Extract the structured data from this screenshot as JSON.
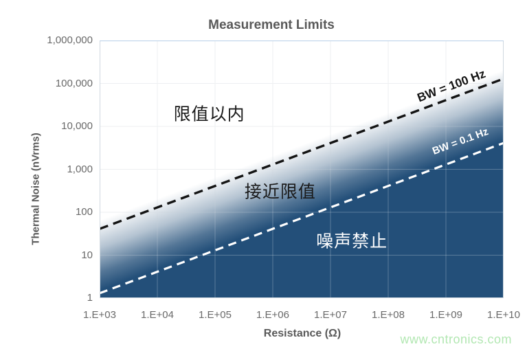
{
  "watermark": {
    "text": "www.cntronics.com",
    "color": "#b2e7b2"
  },
  "chart_data": {
    "type": "line",
    "title": "Measurement Limits",
    "xlabel": "Resistance (Ω)",
    "ylabel": "Thermal Noise (nVrms)",
    "x_scale": "log",
    "y_scale": "log",
    "axes": {
      "x_log_min": 3,
      "x_log_max": 10,
      "y_log_min": 0,
      "y_log_max": 6
    },
    "x_ticks": [
      {
        "log": 3,
        "label": "1.E+03"
      },
      {
        "log": 4,
        "label": "1.E+04"
      },
      {
        "log": 5,
        "label": "1.E+05"
      },
      {
        "log": 6,
        "label": "1.E+06"
      },
      {
        "log": 7,
        "label": "1.E+07"
      },
      {
        "log": 8,
        "label": "1.E+08"
      },
      {
        "log": 9,
        "label": "1.E+09"
      },
      {
        "log": 10,
        "label": "1.E+10"
      }
    ],
    "y_ticks": [
      {
        "log": 6,
        "label": "1,000,000"
      },
      {
        "log": 5,
        "label": "100,000"
      },
      {
        "log": 4,
        "label": "10,000"
      },
      {
        "log": 3,
        "label": "1,000"
      },
      {
        "log": 2,
        "label": "100"
      },
      {
        "log": 1,
        "label": "10"
      },
      {
        "log": 0,
        "label": "1"
      }
    ],
    "x_gridlines_log": [
      4,
      5,
      6,
      7,
      8,
      9
    ],
    "y_gridlines_log": [
      1,
      2,
      3,
      4,
      5
    ],
    "grid": true,
    "legend_position": "none",
    "series": [
      {
        "name": "BW = 100 Hz",
        "style": "dashed",
        "color": "#141414",
        "points_log": [
          {
            "x": 3,
            "y": 1.613
          },
          {
            "x": 10,
            "y": 5.111
          }
        ],
        "points_values": [
          {
            "R_ohm": 1000,
            "noise_nVrms": 41
          },
          {
            "R_ohm": 10000000000,
            "noise_nVrms": 129000
          }
        ]
      },
      {
        "name": "BW = 0.1 Hz",
        "style": "dashed",
        "color": "#ffffff",
        "points_log": [
          {
            "x": 3,
            "y": 0.114
          },
          {
            "x": 10,
            "y": 3.613
          }
        ],
        "points_values": [
          {
            "R_ohm": 1000,
            "noise_nVrms": 1.3
          },
          {
            "R_ohm": 10000000000,
            "noise_nVrms": 4100
          }
        ]
      }
    ],
    "line_labels": [
      {
        "text": "BW = 100 Hz",
        "x_log": 9.1,
        "y_log": 4.94,
        "rotate_deg": -20.5,
        "color": "#141414"
      },
      {
        "text": "BW = 0.1 Hz",
        "x_log": 9.25,
        "y_log": 3.65,
        "rotate_deg": -20.5,
        "color": "#ffffff"
      }
    ],
    "annotations": [
      {
        "text": "限值以内",
        "x_log": 4.9,
        "y_log": 4.27,
        "color": "#1a1a1a"
      },
      {
        "text": "接近限值",
        "x_log": 6.13,
        "y_log": 2.46,
        "color": "#1a1a1a"
      },
      {
        "text": "噪声禁止",
        "x_log": 7.37,
        "y_log": 1.31,
        "color": "#ffffff"
      }
    ],
    "colors": {
      "fill_dark_blue": "#234F79",
      "gridline": "#E7EAED",
      "gridline_on_dark": "rgba(255,255,255,0.25)",
      "border": "#CFD8DF",
      "border_top": "#B9CFE8",
      "title_gray": "#595959",
      "tick_gray": "#696969"
    }
  }
}
